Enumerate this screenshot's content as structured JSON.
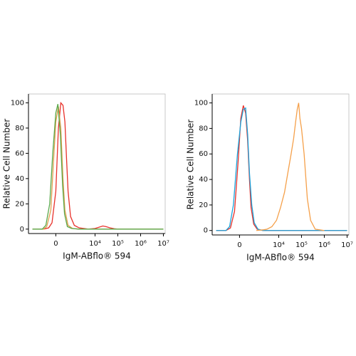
{
  "chart_data": [
    {
      "type": "line",
      "xlabel": "IgM-ABflo® 594",
      "ylabel": "Relative Cell Number",
      "xscale": "biexponential",
      "xlim": [
        -3000,
        12000000
      ],
      "ylim": [
        -3.5,
        107
      ],
      "xticks": [
        0,
        {
          "value": 10000,
          "label": "10⁴"
        },
        {
          "value": 100000,
          "label": "10⁵"
        },
        {
          "value": 1000000,
          "label": "10⁶"
        },
        {
          "value": 10000000,
          "label": "10⁷"
        }
      ],
      "yticks": [
        0,
        20,
        40,
        60,
        80,
        100
      ],
      "series": [
        {
          "color": "#e8312a",
          "x": [
            -2000,
            -600,
            -300,
            -150,
            0,
            100,
            200,
            300,
            400,
            500,
            600,
            800,
            1200,
            2000,
            5000,
            10000,
            15000,
            22000,
            30000,
            45000,
            70000,
            100000,
            1000000,
            10000000
          ],
          "values": [
            0,
            0,
            1,
            5,
            30,
            80,
            100,
            98,
            85,
            55,
            30,
            10,
            3,
            1,
            0,
            0.5,
            1.5,
            2.5,
            2,
            1,
            0.3,
            0,
            0,
            0
          ]
        },
        {
          "color": "#e0a050",
          "x": [
            -2000,
            -600,
            -400,
            -200,
            -100,
            0,
            100,
            200,
            300,
            400,
            600,
            1000,
            2000,
            10000000
          ],
          "values": [
            0,
            0,
            2,
            15,
            50,
            85,
            97,
            80,
            40,
            15,
            3,
            0.5,
            0,
            0
          ]
        },
        {
          "color": "#5aa84a",
          "x": [
            -2000,
            -700,
            -450,
            -250,
            -120,
            0,
            80,
            180,
            280,
            380,
            550,
            900,
            2000,
            10000000
          ],
          "values": [
            0,
            0,
            3,
            20,
            60,
            92,
            99,
            75,
            35,
            12,
            2,
            0.5,
            0,
            0
          ]
        }
      ]
    },
    {
      "type": "line",
      "xlabel": "IgM-ABflo® 594",
      "ylabel": "Relative Cell Number",
      "xscale": "biexponential",
      "xlim": [
        -3000,
        12000000
      ],
      "ylim": [
        -3.5,
        107
      ],
      "xticks": [
        0,
        {
          "value": 10000,
          "label": "10⁴"
        },
        {
          "value": 100000,
          "label": "10⁵"
        },
        {
          "value": 1000000,
          "label": "10⁶"
        },
        {
          "value": 10000000,
          "label": "10⁷"
        }
      ],
      "yticks": [
        0,
        20,
        40,
        60,
        80,
        100
      ],
      "series": [
        {
          "color": "#e8312a",
          "x": [
            -2000,
            -700,
            -400,
            -200,
            -50,
            50,
            150,
            250,
            350,
            450,
            550,
            750,
            1100,
            2000,
            10000000
          ],
          "values": [
            0,
            0,
            2,
            15,
            55,
            88,
            98,
            92,
            70,
            40,
            18,
            5,
            1,
            0,
            0
          ]
        },
        {
          "color": "#1aa3dc",
          "x": [
            -2000,
            -700,
            -450,
            -250,
            -80,
            50,
            150,
            250,
            350,
            450,
            600,
            800,
            1200,
            2000,
            10000000
          ],
          "values": [
            0,
            0,
            3,
            20,
            60,
            85,
            95,
            96,
            75,
            45,
            20,
            6,
            1,
            0,
            0
          ]
        },
        {
          "color": "#f5a04a",
          "x": [
            1000,
            2000,
            3000,
            5000,
            8000,
            12000,
            18000,
            25000,
            35000,
            45000,
            55000,
            65000,
            75000,
            85000,
            100000,
            130000,
            180000,
            250000,
            400000,
            1000000
          ],
          "values": [
            0,
            0.5,
            1,
            3,
            8,
            18,
            30,
            45,
            60,
            72,
            85,
            95,
            100,
            88,
            80,
            60,
            25,
            8,
            1,
            0
          ]
        }
      ]
    }
  ]
}
